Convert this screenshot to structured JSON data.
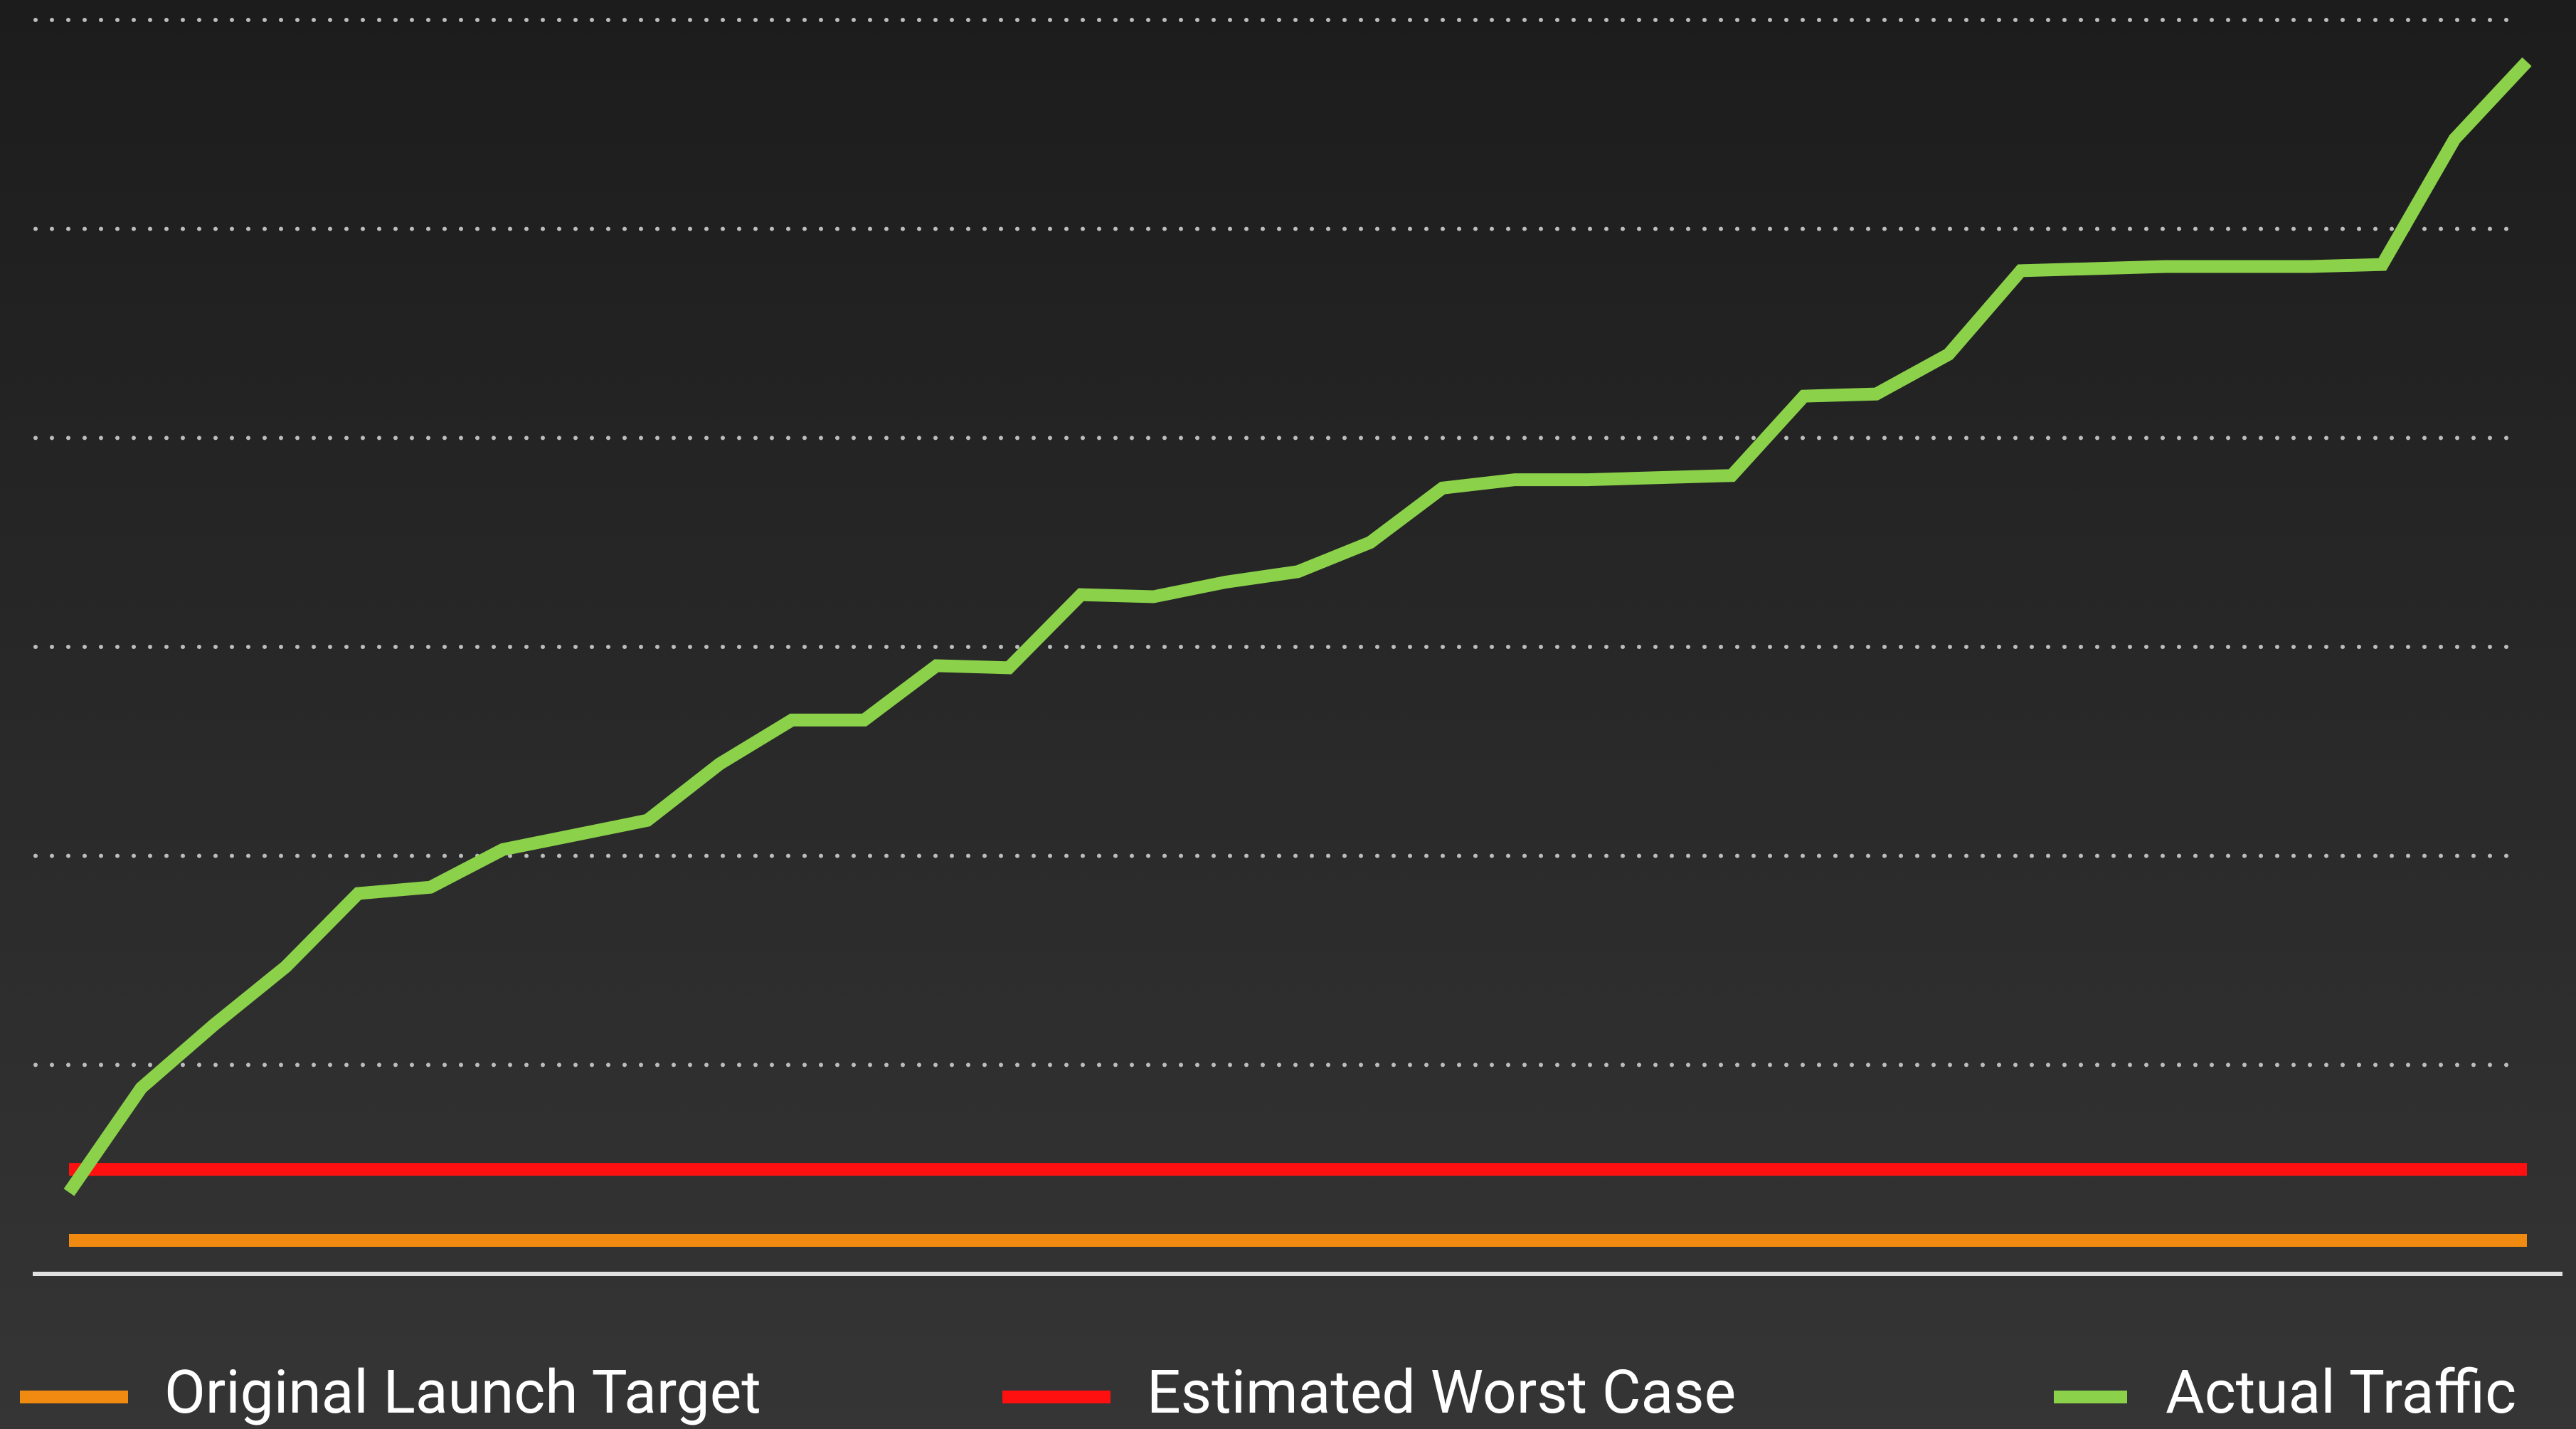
{
  "chart_data": {
    "type": "line",
    "x": [
      0,
      1,
      2,
      3,
      4,
      5,
      6,
      7,
      8,
      9,
      10,
      11,
      12,
      13,
      14,
      15,
      16,
      17,
      18,
      19,
      20,
      21,
      22,
      23,
      24,
      25,
      26,
      27,
      28,
      29,
      30,
      31,
      32,
      33,
      34
    ],
    "xlim": [
      0,
      34
    ],
    "ylim": [
      0,
      6
    ],
    "yticks": [
      0,
      1,
      2,
      3,
      4,
      5,
      6
    ],
    "grid": true,
    "legend": "bottom",
    "series": [
      {
        "name": "Original Launch Target",
        "color": "#f08a10",
        "x": [
          0,
          34
        ],
        "values": [
          0.16,
          0.16
        ]
      },
      {
        "name": "Estimated Worst Case",
        "color": "#ff1010",
        "x": [
          0,
          34
        ],
        "values": [
          0.5,
          0.5
        ]
      },
      {
        "name": "Actual Traffic",
        "color": "#8bd14a",
        "values": [
          0.39,
          0.89,
          1.19,
          1.47,
          1.82,
          1.85,
          2.03,
          2.1,
          2.17,
          2.44,
          2.65,
          2.65,
          2.91,
          2.9,
          3.25,
          3.24,
          3.31,
          3.36,
          3.5,
          3.76,
          3.8,
          3.8,
          3.81,
          3.82,
          4.2,
          4.21,
          4.4,
          4.8,
          4.81,
          4.82,
          4.82,
          4.82,
          4.83,
          5.43,
          5.8
        ]
      }
    ]
  }
}
